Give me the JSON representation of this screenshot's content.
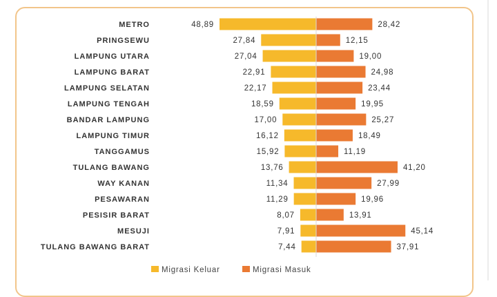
{
  "chart_data": {
    "type": "bar",
    "orientation": "horizontal-diverging",
    "categories": [
      "METRO",
      "PRINGSEWU",
      "LAMPUNG UTARA",
      "LAMPUNG BARAT",
      "LAMPUNG SELATAN",
      "LAMPUNG TENGAH",
      "BANDAR LAMPUNG",
      "LAMPUNG TIMUR",
      "TANGGAMUS",
      "TULANG BAWANG",
      "WAY KANAN",
      "PESAWARAN",
      "PESISIR BARAT",
      "MESUJI",
      "TULANG BAWANG BARAT"
    ],
    "series": [
      {
        "name": "Migrasi Keluar",
        "color": "#f6b92b",
        "side": "left",
        "values": [
          48.89,
          27.84,
          27.04,
          22.91,
          22.17,
          18.59,
          17.0,
          16.12,
          15.92,
          13.76,
          11.34,
          11.29,
          8.07,
          7.91,
          7.44
        ],
        "labels": [
          "48,89",
          "27,84",
          "27,04",
          "22,91",
          "22,17",
          "18,59",
          "17,00",
          "16,12",
          "15,92",
          "13,76",
          "11,34",
          "11,29",
          "8,07",
          "7,91",
          "7,44"
        ]
      },
      {
        "name": "Migrasi Masuk",
        "color": "#ea7a33",
        "side": "right",
        "values": [
          28.42,
          12.15,
          19.0,
          24.98,
          23.44,
          19.95,
          25.27,
          18.49,
          11.19,
          41.2,
          27.99,
          19.96,
          13.91,
          45.14,
          37.91
        ],
        "labels": [
          "28,42",
          "12,15",
          "19,00",
          "24,98",
          "23,44",
          "19,95",
          "25,27",
          "18,49",
          "11,19",
          "41,20",
          "27,99",
          "19,96",
          "13,91",
          "45,14",
          "37,91"
        ]
      }
    ],
    "legend_position": "bottom-center",
    "grid": false,
    "title": "",
    "xlabel": "",
    "ylabel": ""
  }
}
